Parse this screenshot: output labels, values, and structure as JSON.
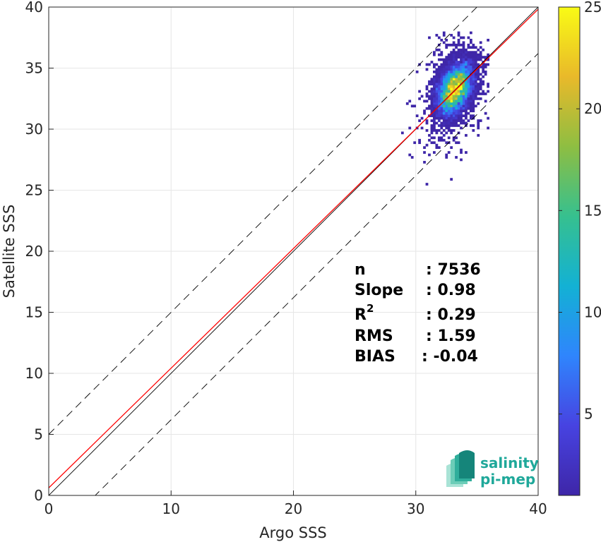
{
  "chart_data": {
    "type": "heatmap",
    "subtype": "density-scatter",
    "xlabel": "Argo SSS",
    "ylabel": "Satellite SSS",
    "xlim": [
      0,
      40
    ],
    "ylim": [
      0,
      40
    ],
    "xticks": [
      "0",
      "10",
      "20",
      "30",
      "40"
    ],
    "yticks": [
      "0",
      "5",
      "10",
      "15",
      "20",
      "25",
      "30",
      "35",
      "40"
    ],
    "grid": true,
    "colorbar": {
      "colormap": "parula",
      "range": [
        1,
        25
      ],
      "ticks": [
        "5",
        "10",
        "15",
        "20",
        "25"
      ],
      "tick_values": [
        5,
        10,
        15,
        20,
        25
      ],
      "colors": [
        "#3e26a8",
        "#4743e1",
        "#2f85fd",
        "#13b1d4",
        "#36c08f",
        "#8ebe42",
        "#e9b92a",
        "#f9fb15"
      ]
    },
    "density": {
      "center": [
        33.2,
        33.3
      ],
      "peak_count": 20,
      "x_extent": [
        27,
        36
      ],
      "y_extent": [
        23,
        38
      ]
    },
    "lines": [
      {
        "name": "1:1 line",
        "color": "#000000",
        "style": "solid",
        "slope": 1,
        "intercept": 0
      },
      {
        "name": "regression",
        "color": "#ff0000",
        "style": "solid",
        "slope": 0.98,
        "intercept": 0.62
      },
      {
        "name": "upper bound",
        "color": "#000000",
        "style": "dashed",
        "slope": 1,
        "intercept": 5
      },
      {
        "name": "lower bound",
        "color": "#000000",
        "style": "dashed",
        "slope": 1,
        "intercept": -3.8
      }
    ],
    "stats": {
      "n_label": "n",
      "n_value": ": 7536",
      "slope_label": "Slope",
      "slope_value": ": 0.98",
      "r2_label": "R",
      "r2_sup": "2",
      "r2_value": ": 0.29",
      "rms_label": "RMS",
      "rms_value": ": 1.59",
      "bias_label": "BIAS",
      "bias_value": ": -0.04"
    }
  },
  "logo": {
    "line1": "salinity",
    "line2": "pi-mep"
  }
}
